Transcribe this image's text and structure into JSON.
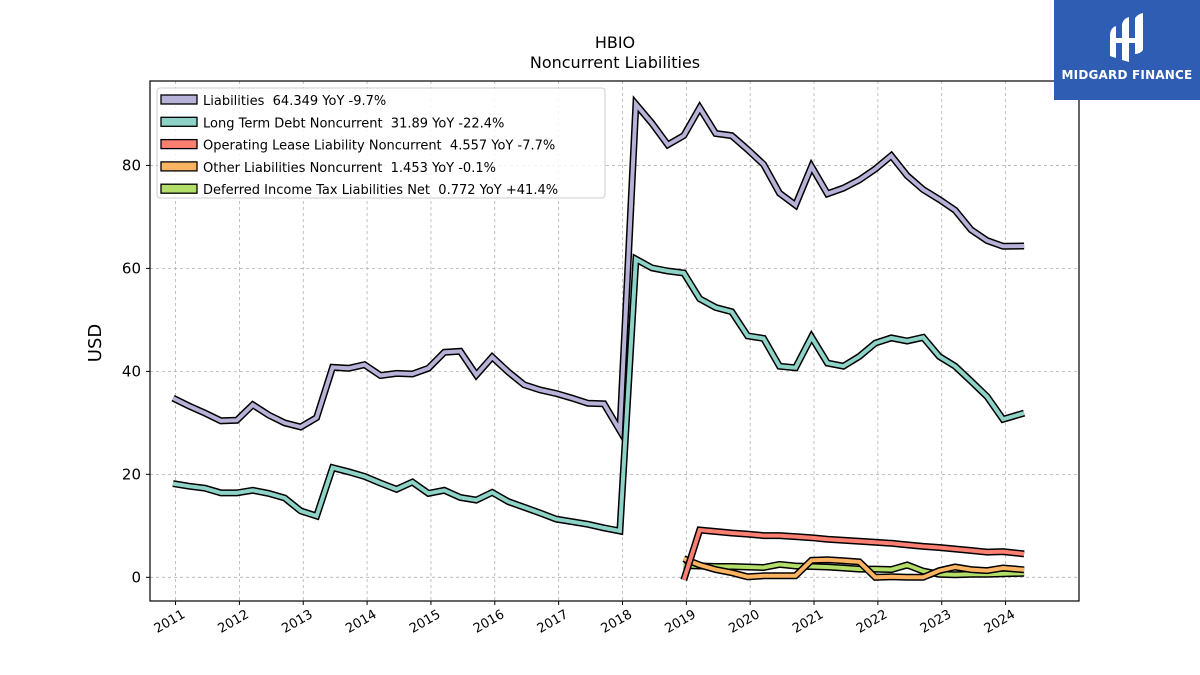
{
  "title": "HBIO",
  "subtitle": "Noncurrent  Liabilities",
  "brand": {
    "name": "MIDGARD FINANCE",
    "bg_color": "#2f5db3"
  },
  "chart_data": {
    "type": "line",
    "title": "HBIO",
    "subtitle": "Noncurrent  Liabilities",
    "xlabel": "",
    "ylabel": "USD",
    "xlim": [
      2010.6,
      2025.15
    ],
    "ylim": [
      -4.6,
      96.4
    ],
    "x_ticks": [
      2011,
      2012,
      2013,
      2014,
      2015,
      2016,
      2017,
      2018,
      2019,
      2020,
      2021,
      2022,
      2023,
      2024
    ],
    "x_tick_labels": [
      "2011",
      "2012",
      "2013",
      "2014",
      "2015",
      "2016",
      "2017",
      "2018",
      "2019",
      "2020",
      "2021",
      "2022",
      "2023",
      "2024"
    ],
    "y_ticks": [
      0,
      20,
      40,
      60,
      80
    ],
    "y_tick_labels": [
      "0",
      "20",
      "40",
      "60",
      "80"
    ],
    "grid": true,
    "legend_position": "top-left",
    "series": [
      {
        "name": "Liabilities",
        "legend": "Liabilities  64.349 YoY -9.7%",
        "color": "#b7b2d8",
        "points": [
          [
            2010.96,
            34.8
          ],
          [
            2011.21,
            33.3
          ],
          [
            2011.46,
            31.9
          ],
          [
            2011.71,
            30.4
          ],
          [
            2011.96,
            30.5
          ],
          [
            2012.21,
            33.5
          ],
          [
            2012.46,
            31.5
          ],
          [
            2012.71,
            30.0
          ],
          [
            2012.96,
            29.2
          ],
          [
            2013.21,
            31.0
          ],
          [
            2013.46,
            40.8
          ],
          [
            2013.71,
            40.6
          ],
          [
            2013.96,
            41.3
          ],
          [
            2014.21,
            39.2
          ],
          [
            2014.46,
            39.6
          ],
          [
            2014.71,
            39.5
          ],
          [
            2014.96,
            40.6
          ],
          [
            2015.21,
            43.7
          ],
          [
            2015.46,
            43.9
          ],
          [
            2015.71,
            39.3
          ],
          [
            2015.96,
            42.8
          ],
          [
            2016.21,
            39.9
          ],
          [
            2016.46,
            37.4
          ],
          [
            2016.71,
            36.4
          ],
          [
            2016.96,
            35.7
          ],
          [
            2017.21,
            34.8
          ],
          [
            2017.46,
            33.8
          ],
          [
            2017.71,
            33.7
          ],
          [
            2017.96,
            28.5
          ],
          [
            2018.21,
            91.9
          ],
          [
            2018.46,
            88.2
          ],
          [
            2018.71,
            84.0
          ],
          [
            2018.96,
            85.8
          ],
          [
            2019.21,
            91.2
          ],
          [
            2019.46,
            86.2
          ],
          [
            2019.71,
            85.8
          ],
          [
            2019.96,
            83.1
          ],
          [
            2020.21,
            80.2
          ],
          [
            2020.46,
            74.6
          ],
          [
            2020.71,
            72.3
          ],
          [
            2020.96,
            79.8
          ],
          [
            2021.21,
            74.5
          ],
          [
            2021.46,
            75.6
          ],
          [
            2021.71,
            77.2
          ],
          [
            2021.96,
            79.3
          ],
          [
            2022.21,
            81.9
          ],
          [
            2022.46,
            78.0
          ],
          [
            2022.71,
            75.3
          ],
          [
            2022.96,
            73.4
          ],
          [
            2023.21,
            71.3
          ],
          [
            2023.46,
            67.5
          ],
          [
            2023.71,
            65.4
          ],
          [
            2023.96,
            64.3
          ],
          [
            2024.29,
            64.349
          ]
        ]
      },
      {
        "name": "Long Term Debt Noncurrent",
        "legend": "Long Term Debt Noncurrent  31.89 YoY -22.4%",
        "color": "#8dd3c7",
        "points": [
          [
            2010.96,
            18.2
          ],
          [
            2011.21,
            17.7
          ],
          [
            2011.46,
            17.3
          ],
          [
            2011.71,
            16.4
          ],
          [
            2011.96,
            16.4
          ],
          [
            2012.21,
            16.9
          ],
          [
            2012.46,
            16.3
          ],
          [
            2012.71,
            15.4
          ],
          [
            2012.96,
            12.9
          ],
          [
            2013.21,
            11.9
          ],
          [
            2013.46,
            21.3
          ],
          [
            2013.71,
            20.5
          ],
          [
            2013.96,
            19.6
          ],
          [
            2014.21,
            18.3
          ],
          [
            2014.46,
            17.1
          ],
          [
            2014.71,
            18.5
          ],
          [
            2014.96,
            16.3
          ],
          [
            2015.21,
            16.9
          ],
          [
            2015.46,
            15.5
          ],
          [
            2015.71,
            15.0
          ],
          [
            2015.96,
            16.5
          ],
          [
            2016.21,
            14.7
          ],
          [
            2016.46,
            13.6
          ],
          [
            2016.71,
            12.5
          ],
          [
            2016.96,
            11.3
          ],
          [
            2017.21,
            10.8
          ],
          [
            2017.46,
            10.3
          ],
          [
            2017.71,
            9.6
          ],
          [
            2017.96,
            9.0
          ],
          [
            2018.21,
            61.8
          ],
          [
            2018.46,
            60.1
          ],
          [
            2018.71,
            59.5
          ],
          [
            2018.96,
            59.1
          ],
          [
            2019.21,
            54.1
          ],
          [
            2019.46,
            52.4
          ],
          [
            2019.71,
            51.6
          ],
          [
            2019.96,
            46.9
          ],
          [
            2020.21,
            46.4
          ],
          [
            2020.46,
            41.0
          ],
          [
            2020.71,
            40.7
          ],
          [
            2020.96,
            46.7
          ],
          [
            2021.21,
            41.6
          ],
          [
            2021.46,
            41.0
          ],
          [
            2021.71,
            42.9
          ],
          [
            2021.96,
            45.5
          ],
          [
            2022.21,
            46.5
          ],
          [
            2022.46,
            45.9
          ],
          [
            2022.71,
            46.6
          ],
          [
            2022.96,
            42.9
          ],
          [
            2023.21,
            41.0
          ],
          [
            2023.46,
            38.1
          ],
          [
            2023.71,
            35.1
          ],
          [
            2023.96,
            30.7
          ],
          [
            2024.29,
            31.89
          ]
        ]
      },
      {
        "name": "Operating Lease Liability Noncurrent",
        "legend": "Operating Lease Liability Noncurrent  4.557 YoY -7.7%",
        "color": "#fb8072",
        "points": [
          [
            2018.96,
            -0.5
          ],
          [
            2019.21,
            9.2
          ],
          [
            2019.46,
            8.9
          ],
          [
            2019.71,
            8.6
          ],
          [
            2019.96,
            8.4
          ],
          [
            2020.21,
            8.1
          ],
          [
            2020.46,
            8.1
          ],
          [
            2020.71,
            7.9
          ],
          [
            2020.96,
            7.7
          ],
          [
            2021.21,
            7.4
          ],
          [
            2021.46,
            7.2
          ],
          [
            2021.71,
            7.0
          ],
          [
            2021.96,
            6.8
          ],
          [
            2022.21,
            6.6
          ],
          [
            2022.46,
            6.3
          ],
          [
            2022.71,
            6.0
          ],
          [
            2022.96,
            5.8
          ],
          [
            2023.21,
            5.5
          ],
          [
            2023.46,
            5.2
          ],
          [
            2023.71,
            4.9
          ],
          [
            2023.96,
            5.0
          ],
          [
            2024.29,
            4.557
          ]
        ]
      },
      {
        "name": "Other Liabilities Noncurrent",
        "legend": "Other Liabilities Noncurrent  1.453 YoY -0.1%",
        "color": "#fdb462",
        "points": [
          [
            2018.96,
            3.6
          ],
          [
            2019.21,
            2.4
          ],
          [
            2019.46,
            1.5
          ],
          [
            2019.71,
            0.9
          ],
          [
            2019.96,
            0.1
          ],
          [
            2020.21,
            0.3
          ],
          [
            2020.46,
            0.3
          ],
          [
            2020.71,
            0.3
          ],
          [
            2020.96,
            3.3
          ],
          [
            2021.21,
            3.4
          ],
          [
            2021.46,
            3.2
          ],
          [
            2021.71,
            3.0
          ],
          [
            2021.96,
            0.0
          ],
          [
            2022.21,
            0.1
          ],
          [
            2022.46,
            0.0
          ],
          [
            2022.71,
            0.0
          ],
          [
            2022.96,
            1.3
          ],
          [
            2023.21,
            2.0
          ],
          [
            2023.46,
            1.5
          ],
          [
            2023.71,
            1.3
          ],
          [
            2023.96,
            1.8
          ],
          [
            2024.29,
            1.453
          ]
        ]
      },
      {
        "name": "Deferred Income Tax Liabilities Net",
        "legend": "Deferred Income Tax Liabilities Net  0.772 YoY +41.4%",
        "color": "#b3de69",
        "points": [
          [
            2018.96,
            2.3
          ],
          [
            2019.21,
            2.2
          ],
          [
            2019.46,
            2.1
          ],
          [
            2019.71,
            2.1
          ],
          [
            2019.96,
            2.0
          ],
          [
            2020.21,
            1.9
          ],
          [
            2020.46,
            2.5
          ],
          [
            2020.71,
            2.2
          ],
          [
            2020.96,
            2.1
          ],
          [
            2021.21,
            2.0
          ],
          [
            2021.46,
            1.8
          ],
          [
            2021.71,
            1.6
          ],
          [
            2021.96,
            1.6
          ],
          [
            2022.21,
            1.5
          ],
          [
            2022.46,
            2.4
          ],
          [
            2022.71,
            1.2
          ],
          [
            2022.96,
            0.6
          ],
          [
            2023.21,
            0.5
          ],
          [
            2023.46,
            0.6
          ],
          [
            2023.71,
            0.6
          ],
          [
            2023.96,
            0.7
          ],
          [
            2024.29,
            0.772
          ]
        ]
      }
    ]
  }
}
